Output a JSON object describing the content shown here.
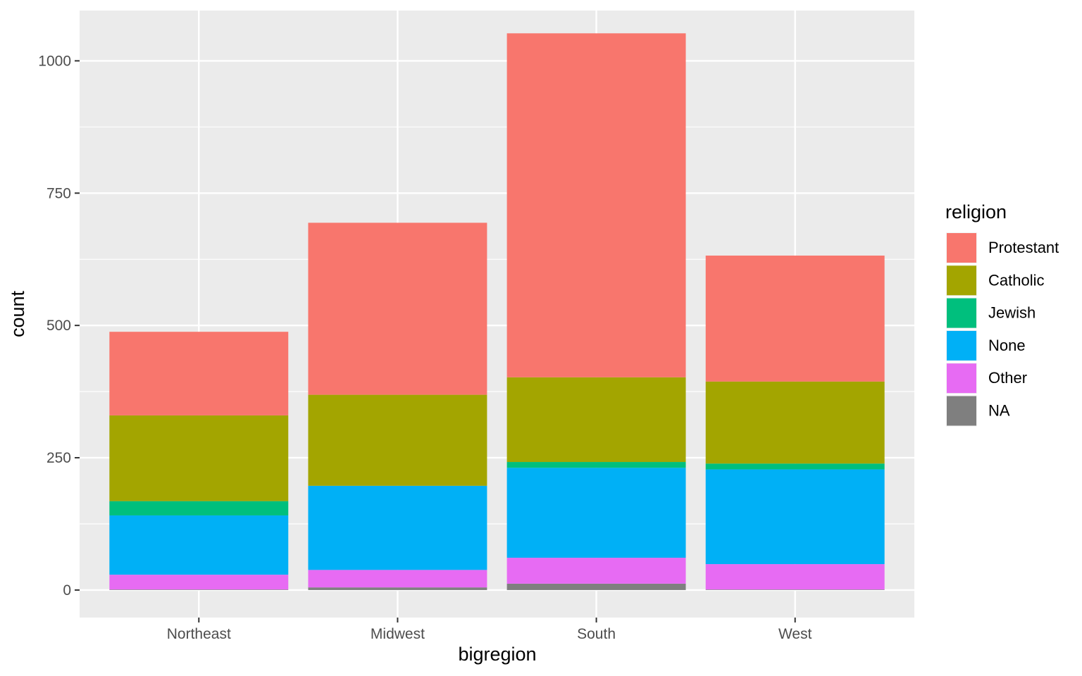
{
  "chart_data": {
    "type": "bar",
    "stacked": true,
    "title": "",
    "xlabel": "bigregion",
    "ylabel": "count",
    "categories": [
      "Northeast",
      "Midwest",
      "South",
      "West"
    ],
    "ylim": [
      -52,
      1095
    ],
    "yticks": [
      0,
      250,
      500,
      750,
      1000
    ],
    "grid": true,
    "legend": {
      "title": "religion",
      "position": "right"
    },
    "series": [
      {
        "name": "NA",
        "color": "#7F7F7F",
        "values": [
          1,
          5,
          12,
          1
        ]
      },
      {
        "name": "Other",
        "color": "#E76BF3",
        "values": [
          28,
          33,
          49,
          48
        ]
      },
      {
        "name": "None",
        "color": "#00B0F6",
        "values": [
          112,
          159,
          170,
          179
        ]
      },
      {
        "name": "Jewish",
        "color": "#00BF7D",
        "values": [
          27,
          0,
          11,
          11
        ]
      },
      {
        "name": "Catholic",
        "color": "#A3A500",
        "values": [
          162,
          172,
          160,
          155
        ]
      },
      {
        "name": "Protestant",
        "color": "#F8766D",
        "values": [
          158,
          325,
          650,
          238
        ]
      }
    ],
    "legend_order": [
      "Protestant",
      "Catholic",
      "Jewish",
      "None",
      "Other",
      "NA"
    ]
  }
}
